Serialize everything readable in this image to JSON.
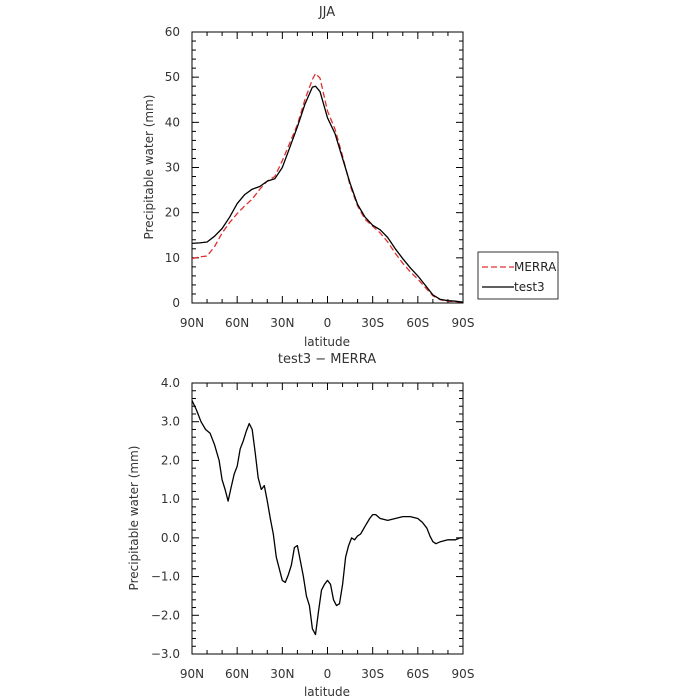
{
  "chart_data": [
    {
      "type": "line",
      "title": "JJA",
      "xlabel": "latitude",
      "ylabel": "Precipitable water (mm)",
      "ylim": [
        0,
        60
      ],
      "y_ticks": [
        "0",
        "10",
        "20",
        "30",
        "40",
        "50",
        "60"
      ],
      "x_ticks": [
        "90N",
        "60N",
        "30N",
        "0",
        "30S",
        "60S",
        "90S"
      ],
      "xlim": [
        90,
        -90
      ],
      "legend": {
        "placement": "right"
      },
      "series": [
        {
          "name": "MERRA",
          "color": "#e03030",
          "style": "dashed",
          "x": [
            90,
            85,
            80,
            75,
            70,
            65,
            60,
            55,
            50,
            45,
            40,
            35,
            30,
            25,
            20,
            15,
            10,
            8,
            5,
            0,
            -5,
            -10,
            -15,
            -20,
            -25,
            -30,
            -35,
            -40,
            -45,
            -50,
            -55,
            -60,
            -65,
            -70,
            -75,
            -80,
            -85,
            -90
          ],
          "y": [
            9.8,
            10.2,
            10.4,
            12.5,
            15.5,
            17.8,
            19.8,
            21.5,
            23.0,
            25.2,
            27.0,
            28.0,
            31.5,
            35.5,
            39.5,
            45.0,
            49.5,
            50.8,
            49.8,
            42.5,
            38.5,
            32.5,
            26.0,
            21.5,
            18.5,
            17.0,
            15.5,
            13.5,
            11.0,
            8.8,
            6.9,
            5.3,
            3.4,
            1.6,
            0.7,
            0.35,
            0.3,
            0.15
          ]
        },
        {
          "name": "test3",
          "color": "#000000",
          "style": "solid",
          "x": [
            90,
            85,
            80,
            75,
            70,
            65,
            60,
            55,
            50,
            45,
            40,
            35,
            30,
            25,
            20,
            15,
            10,
            8,
            5,
            0,
            -5,
            -10,
            -15,
            -20,
            -25,
            -30,
            -35,
            -40,
            -45,
            -50,
            -55,
            -60,
            -65,
            -70,
            -75,
            -80,
            -85,
            -90
          ],
          "y": [
            13.2,
            13.3,
            13.5,
            14.8,
            16.5,
            19.0,
            22.0,
            24.0,
            25.2,
            25.8,
            27.0,
            27.5,
            30.0,
            34.5,
            39.0,
            44.0,
            47.8,
            48.0,
            46.8,
            41.0,
            37.5,
            32.0,
            26.5,
            21.8,
            19.0,
            17.2,
            16.2,
            14.5,
            12.0,
            9.8,
            7.8,
            6.0,
            3.9,
            1.8,
            0.8,
            0.5,
            0.4,
            0.2
          ]
        }
      ]
    },
    {
      "type": "line",
      "title": "test3 − MERRA",
      "xlabel": "latitude",
      "ylabel": "Precipitable water (mm)",
      "ylim": [
        -3.0,
        4.0
      ],
      "y_ticks": [
        "−3.0",
        "−2.0",
        "−1.0",
        "0.0",
        "1.0",
        "2.0",
        "3.0",
        "4.0"
      ],
      "x_ticks": [
        "90N",
        "60N",
        "30N",
        "0",
        "30S",
        "60S",
        "90S"
      ],
      "xlim": [
        90,
        -90
      ],
      "series": [
        {
          "color": "#000000",
          "style": "solid",
          "x": [
            90,
            87,
            84,
            81,
            78,
            75,
            72,
            70,
            68,
            66,
            64,
            62,
            60,
            58,
            56,
            54,
            52,
            50,
            48,
            46,
            44,
            42,
            40,
            38,
            36,
            34,
            32,
            30,
            28,
            26,
            24,
            22,
            20,
            18,
            16,
            14,
            12,
            10,
            8,
            6,
            4,
            2,
            0,
            -2,
            -4,
            -6,
            -8,
            -10,
            -12,
            -14,
            -16,
            -18,
            -20,
            -22,
            -25,
            -28,
            -30,
            -32,
            -35,
            -40,
            -45,
            -50,
            -55,
            -60,
            -63,
            -66,
            -68,
            -70,
            -72,
            -75,
            -80,
            -85,
            -88,
            -90
          ],
          "y": [
            3.55,
            3.3,
            3.0,
            2.8,
            2.7,
            2.4,
            2.0,
            1.5,
            1.25,
            0.95,
            1.3,
            1.65,
            1.85,
            2.3,
            2.5,
            2.75,
            2.95,
            2.8,
            2.2,
            1.55,
            1.25,
            1.35,
            0.95,
            0.5,
            0.1,
            -0.5,
            -0.8,
            -1.1,
            -1.15,
            -0.95,
            -0.7,
            -0.25,
            -0.2,
            -0.6,
            -1.0,
            -1.5,
            -1.75,
            -2.35,
            -2.5,
            -1.9,
            -1.35,
            -1.2,
            -1.1,
            -1.2,
            -1.6,
            -1.75,
            -1.7,
            -1.2,
            -0.5,
            -0.2,
            0.0,
            -0.05,
            0.05,
            0.1,
            0.3,
            0.5,
            0.6,
            0.6,
            0.5,
            0.45,
            0.5,
            0.55,
            0.55,
            0.5,
            0.4,
            0.25,
            0.05,
            -0.1,
            -0.15,
            -0.1,
            -0.05,
            -0.05,
            0.0,
            0.0
          ]
        }
      ]
    }
  ],
  "legend_labels": [
    "MERRA",
    "test3"
  ]
}
